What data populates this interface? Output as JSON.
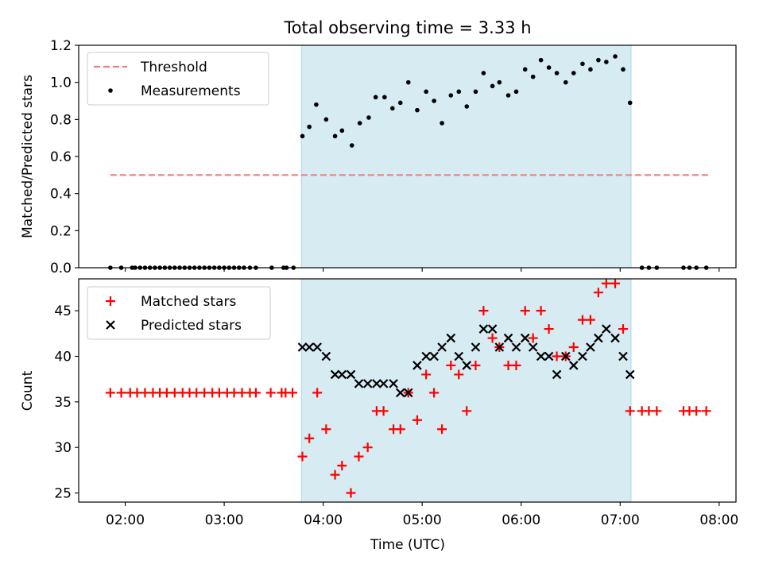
{
  "chart_data": [
    {
      "type": "scatter",
      "title": "Total observing time = 3.33 h",
      "xlabel": "",
      "ylabel": "Matched/Predicted stars",
      "xlim": [
        1.53,
        8.17
      ],
      "ylim": [
        0,
        1.2
      ],
      "yticks": [
        "0.0",
        "0.2",
        "0.4",
        "0.6",
        "0.8",
        "1.0",
        "1.2"
      ],
      "shaded_span": [
        3.78,
        7.11
      ],
      "shade_color": "#add8e6",
      "legend_position": "upper left",
      "legend": [
        "Threshold",
        "Measurements"
      ],
      "series": [
        {
          "name": "Threshold",
          "kind": "line",
          "color": "#f08080",
          "style": "dashed",
          "x": [
            1.85,
            7.89
          ],
          "y": [
            0.5,
            0.5
          ]
        },
        {
          "name": "Measurements",
          "kind": "dot",
          "color": "#000000",
          "x": [
            1.85,
            1.96,
            2.07,
            2.1,
            2.15,
            2.2,
            2.25,
            2.3,
            2.35,
            2.4,
            2.45,
            2.5,
            2.55,
            2.6,
            2.65,
            2.7,
            2.75,
            2.8,
            2.85,
            2.9,
            2.95,
            3.0,
            3.05,
            3.1,
            3.15,
            3.2,
            3.26,
            3.32,
            3.48,
            3.6,
            3.63,
            3.7,
            3.79,
            3.86,
            3.93,
            4.03,
            4.12,
            4.19,
            4.29,
            4.37,
            4.46,
            4.53,
            4.62,
            4.7,
            4.78,
            4.86,
            4.95,
            5.04,
            5.12,
            5.2,
            5.29,
            5.37,
            5.45,
            5.54,
            5.62,
            5.71,
            5.78,
            5.87,
            5.95,
            6.04,
            6.12,
            6.2,
            6.28,
            6.36,
            6.45,
            6.53,
            6.62,
            6.7,
            6.78,
            6.86,
            6.95,
            7.03,
            7.1,
            7.22,
            7.29,
            7.37,
            7.64,
            7.7,
            7.77,
            7.87
          ],
          "y": [
            0,
            0,
            0,
            0,
            0,
            0,
            0,
            0,
            0,
            0,
            0,
            0,
            0,
            0,
            0,
            0,
            0,
            0,
            0,
            0,
            0,
            0,
            0,
            0,
            0,
            0,
            0,
            0,
            0,
            0,
            0,
            0,
            0.71,
            0.76,
            0.88,
            0.8,
            0.71,
            0.74,
            0.66,
            0.78,
            0.81,
            0.92,
            0.92,
            0.86,
            0.89,
            1.0,
            0.85,
            0.95,
            0.9,
            0.78,
            0.93,
            0.95,
            0.87,
            0.95,
            1.05,
            0.98,
            1.0,
            0.93,
            0.95,
            1.07,
            1.03,
            1.12,
            1.08,
            1.05,
            1.0,
            1.05,
            1.1,
            1.07,
            1.12,
            1.11,
            1.14,
            1.07,
            0.89,
            0,
            0,
            0,
            0,
            0,
            0,
            0
          ]
        }
      ]
    },
    {
      "type": "scatter",
      "title": "",
      "xlabel": "Time (UTC)",
      "ylabel": "Count",
      "xlim": [
        1.53,
        8.17
      ],
      "ylim": [
        24,
        48.5
      ],
      "xticks": [
        "02:00",
        "03:00",
        "04:00",
        "05:00",
        "06:00",
        "07:00",
        "08:00"
      ],
      "xtick_values": [
        2,
        3,
        4,
        5,
        6,
        7,
        8
      ],
      "yticks": [
        "25",
        "30",
        "35",
        "40",
        "45"
      ],
      "shaded_span": [
        3.78,
        7.11
      ],
      "shade_color": "#add8e6",
      "legend_position": "upper left",
      "legend": [
        "Matched stars",
        "Predicted stars"
      ],
      "series": [
        {
          "name": "Matched stars",
          "kind": "plus",
          "color": "#ff0000",
          "x": [
            1.85,
            1.96,
            2.05,
            2.12,
            2.2,
            2.28,
            2.35,
            2.42,
            2.5,
            2.58,
            2.65,
            2.72,
            2.8,
            2.88,
            2.95,
            3.03,
            3.1,
            3.18,
            3.26,
            3.32,
            3.47,
            3.58,
            3.62,
            3.69,
            3.79,
            3.86,
            3.94,
            4.03,
            4.12,
            4.19,
            4.28,
            4.36,
            4.45,
            4.54,
            4.61,
            4.71,
            4.78,
            4.86,
            4.95,
            5.04,
            5.12,
            5.2,
            5.29,
            5.37,
            5.45,
            5.54,
            5.62,
            5.71,
            5.78,
            5.87,
            5.95,
            6.04,
            6.12,
            6.2,
            6.28,
            6.36,
            6.45,
            6.53,
            6.62,
            6.7,
            6.78,
            6.86,
            6.95,
            7.03,
            7.1,
            7.22,
            7.29,
            7.37,
            7.64,
            7.7,
            7.77,
            7.87
          ],
          "y": [
            36,
            36,
            36,
            36,
            36,
            36,
            36,
            36,
            36,
            36,
            36,
            36,
            36,
            36,
            36,
            36,
            36,
            36,
            36,
            36,
            36,
            36,
            36,
            36,
            29,
            31,
            36,
            32,
            27,
            28,
            25,
            29,
            30,
            34,
            34,
            32,
            32,
            36,
            33,
            38,
            36,
            32,
            39,
            38,
            34,
            39,
            45,
            42,
            41,
            39,
            39,
            45,
            42,
            45,
            43,
            40,
            40,
            41,
            44,
            44,
            47,
            48,
            48,
            43,
            34,
            34,
            34,
            34,
            34,
            34,
            34,
            34
          ]
        },
        {
          "name": "Predicted stars",
          "kind": "x",
          "color": "#000000",
          "x": [
            3.79,
            3.86,
            3.94,
            4.03,
            4.12,
            4.19,
            4.28,
            4.36,
            4.45,
            4.54,
            4.61,
            4.71,
            4.78,
            4.86,
            4.95,
            5.04,
            5.12,
            5.2,
            5.29,
            5.37,
            5.45,
            5.54,
            5.62,
            5.71,
            5.78,
            5.87,
            5.95,
            6.04,
            6.12,
            6.2,
            6.28,
            6.36,
            6.45,
            6.53,
            6.62,
            6.7,
            6.78,
            6.86,
            6.95,
            7.03,
            7.1
          ],
          "y": [
            41,
            41,
            41,
            40,
            38,
            38,
            38,
            37,
            37,
            37,
            37,
            37,
            36,
            36,
            39,
            40,
            40,
            41,
            42,
            40,
            39,
            41,
            43,
            43,
            41,
            42,
            41,
            42,
            41,
            40,
            40,
            38,
            40,
            39,
            40,
            41,
            42,
            43,
            42,
            40,
            38
          ]
        }
      ]
    }
  ]
}
